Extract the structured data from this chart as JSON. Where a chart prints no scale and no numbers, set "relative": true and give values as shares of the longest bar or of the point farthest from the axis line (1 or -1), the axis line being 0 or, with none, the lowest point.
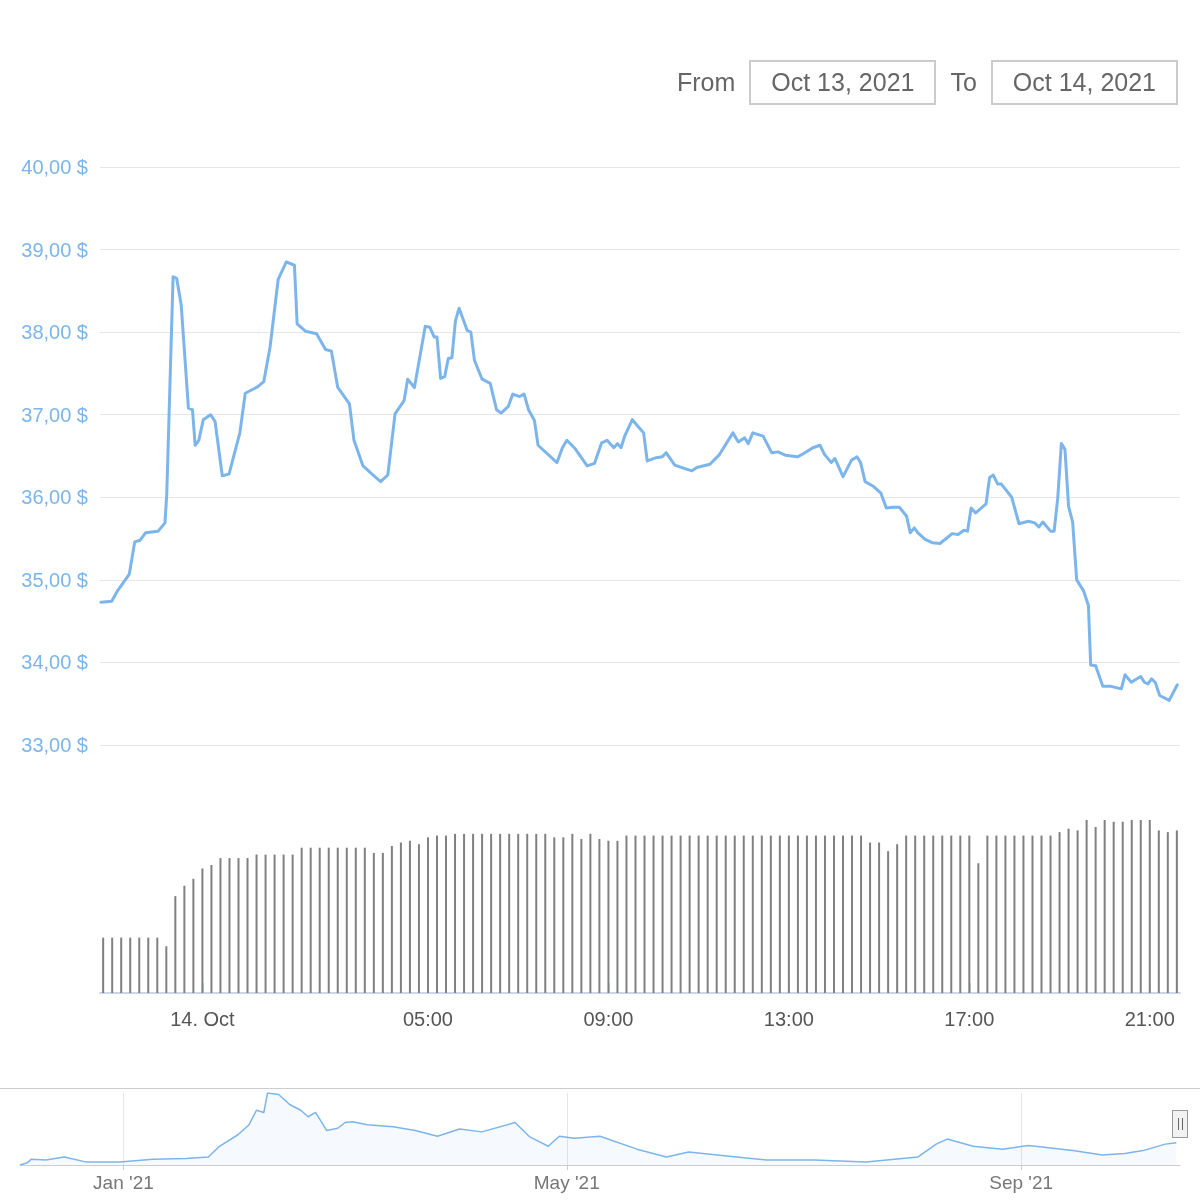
{
  "chart_data": [
    {
      "type": "line",
      "annotations": [
        "From",
        "Oct 13, 2021",
        "To",
        "Oct 14, 2021"
      ],
      "color": "#7cb5ec",
      "x": [
        -2.25,
        -2.01,
        -1.89,
        -1.62,
        -1.5,
        -1.38,
        -1.26,
        -0.98,
        -0.83,
        -0.79,
        -0.65,
        -0.57,
        -0.47,
        -0.31,
        -0.22,
        -0.16,
        -0.08,
        0.02,
        0.18,
        0.28,
        0.44,
        0.59,
        0.83,
        0.95,
        1.23,
        1.36,
        1.5,
        1.68,
        1.86,
        2.04,
        2.1,
        2.29,
        2.53,
        2.73,
        2.86,
        3.0,
        3.26,
        3.36,
        3.56,
        3.76,
        3.95,
        4.11,
        4.27,
        4.47,
        4.55,
        4.7,
        4.94,
        5.04,
        5.14,
        5.2,
        5.28,
        5.37,
        5.45,
        5.53,
        5.61,
        5.69,
        5.87,
        5.95,
        6.03,
        6.2,
        6.38,
        6.52,
        6.62,
        6.78,
        6.88,
        7.03,
        7.13,
        7.23,
        7.36,
        7.44,
        7.86,
        7.98,
        8.08,
        8.26,
        8.53,
        8.69,
        8.85,
        8.97,
        9.12,
        9.2,
        9.28,
        9.36,
        9.53,
        9.7,
        9.78,
        9.86,
        10.06,
        10.19,
        10.28,
        10.47,
        10.63,
        10.85,
        10.96,
        11.25,
        11.45,
        11.76,
        11.88,
        12.02,
        12.1,
        12.2,
        12.43,
        12.62,
        12.76,
        12.92,
        13.19,
        13.33,
        13.53,
        13.69,
        13.79,
        13.94,
        14.02,
        14.2,
        14.39,
        14.51,
        14.59,
        14.69,
        14.88,
        15.04,
        15.16,
        15.29,
        15.45,
        15.61,
        15.69,
        15.78,
        15.86,
        16.02,
        16.18,
        16.35,
        16.62,
        16.75,
        16.88,
        16.96,
        17.04,
        17.14,
        17.37,
        17.45,
        17.53,
        17.63,
        17.71,
        17.94,
        18.1,
        18.31,
        18.45,
        18.54,
        18.63,
        18.8,
        18.88,
        18.96,
        19.04,
        19.12,
        19.2,
        19.29,
        19.38,
        19.53,
        19.64,
        19.69,
        19.8,
        19.96,
        20.14,
        20.37,
        20.45,
        20.59,
        20.8,
        20.88,
        20.96,
        21.04,
        21.12,
        21.22,
        21.43,
        21.61
      ],
      "values": [
        34.73,
        34.74,
        34.86,
        35.07,
        35.46,
        35.48,
        35.57,
        35.59,
        35.69,
        36.04,
        38.67,
        38.65,
        38.33,
        37.08,
        37.06,
        36.63,
        36.69,
        36.94,
        37.0,
        36.92,
        36.26,
        36.28,
        36.78,
        37.26,
        37.34,
        37.4,
        37.82,
        38.64,
        38.85,
        38.81,
        38.1,
        38.01,
        37.98,
        37.79,
        37.77,
        37.33,
        37.13,
        36.69,
        36.38,
        36.28,
        36.19,
        36.27,
        37.01,
        37.17,
        37.43,
        37.33,
        38.07,
        38.06,
        37.94,
        37.94,
        37.44,
        37.46,
        37.68,
        37.69,
        38.14,
        38.29,
        38.02,
        38.0,
        37.66,
        37.43,
        37.38,
        37.06,
        37.02,
        37.1,
        37.25,
        37.22,
        37.25,
        37.06,
        36.93,
        36.63,
        36.42,
        36.6,
        36.69,
        36.59,
        36.38,
        36.41,
        36.66,
        36.69,
        36.6,
        36.65,
        36.6,
        36.74,
        36.94,
        36.83,
        36.78,
        36.44,
        36.48,
        36.49,
        36.54,
        36.39,
        36.36,
        36.32,
        36.36,
        36.4,
        36.51,
        36.78,
        36.67,
        36.72,
        36.65,
        36.78,
        36.74,
        36.54,
        36.55,
        36.51,
        36.49,
        36.53,
        36.6,
        36.63,
        36.52,
        36.42,
        36.47,
        36.25,
        36.45,
        36.49,
        36.42,
        36.19,
        36.13,
        36.05,
        35.87,
        35.88,
        35.88,
        35.77,
        35.57,
        35.63,
        35.57,
        35.49,
        35.45,
        35.44,
        35.56,
        35.55,
        35.6,
        35.59,
        35.87,
        35.81,
        35.92,
        36.24,
        36.27,
        36.16,
        36.16,
        36.0,
        35.68,
        35.71,
        35.69,
        35.64,
        35.7,
        35.59,
        35.59,
        35.99,
        36.65,
        36.58,
        35.89,
        35.7,
        35.0,
        34.87,
        34.69,
        33.97,
        33.96,
        33.71,
        33.71,
        33.68,
        33.85,
        33.76,
        33.83,
        33.76,
        33.74,
        33.8,
        33.76,
        33.6,
        33.54,
        33.73
      ],
      "xlim": [
        -2.27,
        21.67
      ],
      "ylim": [
        33,
        40
      ],
      "yticks": [
        {
          "value": 33,
          "label": "33,00 $"
        },
        {
          "value": 34,
          "label": "34,00 $"
        },
        {
          "value": 35,
          "label": "35,00 $"
        },
        {
          "value": 36,
          "label": "36,00 $"
        },
        {
          "value": 37,
          "label": "37,00 $"
        },
        {
          "value": 38,
          "label": "38,00 $"
        },
        {
          "value": 39,
          "label": "39,00 $"
        },
        {
          "value": 40,
          "label": "40,00 $"
        }
      ],
      "grid": "y",
      "tick_labels": "y"
    },
    {
      "type": "bar",
      "relative": true,
      "color": "#808080",
      "x": [
        -2.2,
        -2,
        -1.8,
        -1.6,
        -1.4,
        -1.2,
        -1,
        -0.8,
        -0.6,
        -0.4,
        -0.2,
        0,
        0.2,
        0.4,
        0.6,
        0.8,
        1,
        1.2,
        1.4,
        1.6,
        1.8,
        2,
        2.2,
        2.4,
        2.6,
        2.8,
        3,
        3.2,
        3.4,
        3.6,
        3.8,
        4,
        4.2,
        4.4,
        4.6,
        4.8,
        5,
        5.2,
        5.4,
        5.6,
        5.8,
        6,
        6.2,
        6.4,
        6.6,
        6.8,
        7,
        7.2,
        7.4,
        7.6,
        7.8,
        8,
        8.2,
        8.4,
        8.6,
        8.8,
        9,
        9.2,
        9.4,
        9.6,
        9.8,
        10,
        10.2,
        10.4,
        10.6,
        10.8,
        11,
        11.2,
        11.4,
        11.6,
        11.8,
        12,
        12.2,
        12.4,
        12.6,
        12.8,
        13,
        13.2,
        13.4,
        13.6,
        13.8,
        14,
        14.2,
        14.4,
        14.6,
        14.8,
        15,
        15.2,
        15.4,
        15.6,
        15.8,
        16,
        16.2,
        16.4,
        16.6,
        16.8,
        17,
        17.2,
        17.4,
        17.6,
        17.8,
        18,
        18.2,
        18.4,
        18.6,
        18.8,
        19,
        19.2,
        19.4,
        19.6,
        19.8,
        20,
        20.2,
        20.4,
        20.6,
        20.8,
        21,
        21.2,
        21.4,
        21.6
      ],
      "values": [
        0.32,
        0.32,
        0.32,
        0.32,
        0.32,
        0.32,
        0.32,
        0.27,
        0.56,
        0.62,
        0.66,
        0.72,
        0.74,
        0.78,
        0.78,
        0.78,
        0.78,
        0.8,
        0.8,
        0.8,
        0.8,
        0.8,
        0.84,
        0.84,
        0.84,
        0.84,
        0.84,
        0.84,
        0.84,
        0.84,
        0.81,
        0.81,
        0.85,
        0.87,
        0.88,
        0.86,
        0.9,
        0.91,
        0.91,
        0.92,
        0.92,
        0.92,
        0.92,
        0.92,
        0.92,
        0.92,
        0.92,
        0.92,
        0.92,
        0.92,
        0.9,
        0.9,
        0.92,
        0.89,
        0.92,
        0.89,
        0.88,
        0.88,
        0.91,
        0.91,
        0.91,
        0.91,
        0.91,
        0.91,
        0.91,
        0.91,
        0.91,
        0.91,
        0.91,
        0.91,
        0.91,
        0.91,
        0.91,
        0.91,
        0.91,
        0.91,
        0.91,
        0.91,
        0.91,
        0.91,
        0.91,
        0.91,
        0.91,
        0.91,
        0.91,
        0.87,
        0.87,
        0.82,
        0.86,
        0.91,
        0.91,
        0.91,
        0.91,
        0.91,
        0.91,
        0.91,
        0.91,
        0.75,
        0.91,
        0.91,
        0.91,
        0.91,
        0.91,
        0.91,
        0.91,
        0.91,
        0.93,
        0.95,
        0.94,
        1,
        0.96,
        1,
        0.99,
        0.99,
        1,
        1,
        1,
        0.94,
        0.93,
        0.94
      ],
      "xlim": [
        -2.27,
        21.67
      ],
      "xticks": [
        {
          "value": 0,
          "label": "14. Oct"
        },
        {
          "value": 5,
          "label": "05:00"
        },
        {
          "value": 9,
          "label": "09:00"
        },
        {
          "value": 13,
          "label": "13:00"
        },
        {
          "value": 17,
          "label": "17:00"
        },
        {
          "value": 21,
          "label": "21:00"
        }
      ],
      "tick_labels": "x"
    },
    {
      "type": "area",
      "relative": true,
      "color": "#7cb5ec",
      "x": [
        "2020-12-04",
        "2020-12-06",
        "2020-12-07",
        "2020-12-11",
        "2020-12-16",
        "2020-12-22",
        "2020-12-31",
        "2021-01-09",
        "2021-01-18",
        "2021-01-24",
        "2021-01-27",
        "2021-02-01",
        "2021-02-04",
        "2021-02-06",
        "2021-02-08",
        "2021-02-09",
        "2021-02-12",
        "2021-02-15",
        "2021-02-18",
        "2021-02-20",
        "2021-02-22",
        "2021-02-25",
        "2021-02-28",
        "2021-03-02",
        "2021-03-04",
        "2021-03-08",
        "2021-03-15",
        "2021-03-21",
        "2021-03-27",
        "2021-04-02",
        "2021-04-08",
        "2021-04-17",
        "2021-04-21",
        "2021-04-26",
        "2021-04-29",
        "2021-05-03",
        "2021-05-10",
        "2021-05-20",
        "2021-05-28",
        "2021-06-03",
        "2021-06-14",
        "2021-06-24",
        "2021-07-07",
        "2021-07-21",
        "2021-08-04",
        "2021-08-09",
        "2021-08-12",
        "2021-08-19",
        "2021-08-27",
        "2021-09-03",
        "2021-09-15",
        "2021-09-23",
        "2021-09-29",
        "2021-10-04",
        "2021-10-10",
        "2021-10-13"
      ],
      "values": [
        0,
        0.03,
        0.08,
        0.07,
        0.11,
        0.04,
        0.04,
        0.08,
        0.09,
        0.11,
        0.26,
        0.42,
        0.56,
        0.76,
        0.73,
        1,
        0.98,
        0.84,
        0.76,
        0.67,
        0.73,
        0.48,
        0.51,
        0.59,
        0.6,
        0.56,
        0.53,
        0.48,
        0.4,
        0.5,
        0.46,
        0.59,
        0.39,
        0.26,
        0.4,
        0.37,
        0.4,
        0.22,
        0.11,
        0.18,
        0.12,
        0.07,
        0.07,
        0.04,
        0.11,
        0.29,
        0.36,
        0.26,
        0.22,
        0.27,
        0.2,
        0.14,
        0.16,
        0.2,
        0.29,
        0.31
      ],
      "xlim": [
        "2020-12-04",
        "2021-10-14"
      ],
      "xticks": [
        {
          "value": "2021-01-01",
          "label": "Jan '21"
        },
        {
          "value": "2021-05-01",
          "label": "May '21"
        },
        {
          "value": "2021-09-01",
          "label": "Sep '21"
        }
      ],
      "grid": "x",
      "tick_labels": "x"
    }
  ]
}
